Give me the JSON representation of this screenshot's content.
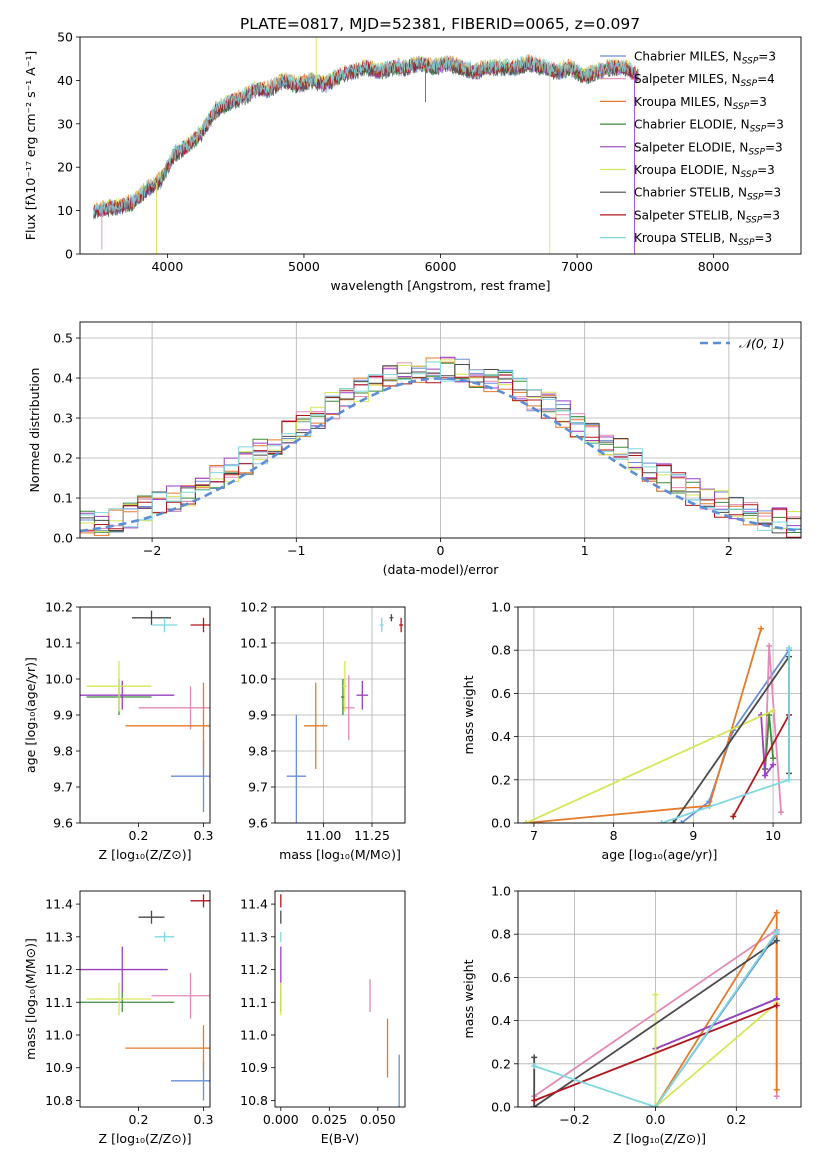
{
  "figure": {
    "title": "PLATE=0817, MJD=52381, FIBERID=0065, z=0.097"
  },
  "series_legend": [
    {
      "name": "Chabrier MILES",
      "nssp": "3",
      "color": "#6a8ed8"
    },
    {
      "name": "Salpeter MILES",
      "nssp": "4",
      "color": "#e58ab6"
    },
    {
      "name": "Kroupa MILES",
      "nssp": "3",
      "color": "#e67a2a"
    },
    {
      "name": "Chabrier ELODIE",
      "nssp": "3",
      "color": "#3f8a3f"
    },
    {
      "name": "Salpeter ELODIE",
      "nssp": "3",
      "color": "#9b3fc4"
    },
    {
      "name": "Kroupa ELODIE",
      "nssp": "3",
      "color": "#d6e65a"
    },
    {
      "name": "Chabrier STELIB",
      "nssp": "3",
      "color": "#4a4a4a"
    },
    {
      "name": "Salpeter STELIB",
      "nssp": "3",
      "color": "#b0161e"
    },
    {
      "name": "Kroupa STELIB",
      "nssp": "3",
      "color": "#7fd8e0"
    }
  ],
  "chart_data": [
    {
      "id": "spectrum",
      "type": "line",
      "xlabel": "wavelength [Angstrom, rest frame]",
      "ylabel": "Flux [fλ10⁻¹⁷ erg cm⁻² s⁻¹ A⁻¹]",
      "xlim": [
        3360,
        8640
      ],
      "ylim": [
        0,
        50
      ],
      "xticks": [
        4000,
        5000,
        6000,
        7000,
        8000
      ],
      "yticks": [
        0,
        10,
        20,
        30,
        40,
        50
      ],
      "grid": false,
      "legend_position": "upper right",
      "x": [
        3460,
        3550,
        3650,
        3750,
        3850,
        3950,
        4050,
        4150,
        4250,
        4350,
        4450,
        4550,
        4650,
        4750,
        4850,
        4950,
        5050,
        5150,
        5250,
        5350,
        5450,
        5550,
        5650,
        5750,
        5850,
        5950,
        6050,
        6150,
        6250,
        6350,
        6450,
        6550,
        6650,
        6750,
        6850,
        6950,
        7050,
        7150,
        7250,
        7350,
        7450
      ],
      "y": [
        10,
        10.5,
        11,
        12,
        15,
        17,
        23,
        25,
        28,
        33,
        35,
        36,
        38,
        38,
        40,
        39,
        40,
        39,
        41,
        42,
        43,
        42,
        43,
        43,
        44,
        43,
        44,
        43,
        42,
        43,
        43,
        43,
        44,
        43,
        42,
        43,
        41,
        42,
        43,
        43,
        41
      ],
      "features": [
        {
          "x": 3520,
          "y": 1
        },
        {
          "x": 3920,
          "y": 0
        },
        {
          "x": 5090,
          "y": 50
        },
        {
          "x": 5890,
          "y": 35
        },
        {
          "x": 6800,
          "y": 0
        },
        {
          "x": 7420,
          "y": 0
        }
      ]
    },
    {
      "id": "residuals",
      "type": "bar",
      "xlabel": "(data-model)/error",
      "ylabel": "Normed distribution",
      "xlim": [
        -2.5,
        2.5
      ],
      "ylim": [
        0,
        0.54
      ],
      "xticks": [
        -2,
        -1,
        0,
        1,
        2
      ],
      "yticks": [
        0.0,
        0.1,
        0.2,
        0.3,
        0.4,
        0.5
      ],
      "grid": true,
      "legend": "𝒩(0, 1)",
      "legend_position": "upper right",
      "bin_width": 0.1
    },
    {
      "id": "age-vs-Z",
      "type": "scatter",
      "xlabel": "Z [log₁₀(Z/Z⊙)]",
      "ylabel": "age  [log₁₀(age/yr)]",
      "xlim": [
        0.11,
        0.31
      ],
      "ylim": [
        9.6,
        10.2
      ],
      "xticks": [
        0.2,
        0.3
      ],
      "yticks": [
        9.6,
        9.7,
        9.8,
        9.9,
        10.0,
        10.1,
        10.2
      ],
      "grid": false,
      "points": [
        {
          "x": 0.3,
          "y": 9.73,
          "xerr": 0.05,
          "yerr": 0.1,
          "series": 0
        },
        {
          "x": 0.28,
          "y": 9.92,
          "xerr": 0.08,
          "yerr": 0.06,
          "series": 1
        },
        {
          "x": 0.3,
          "y": 9.87,
          "xerr": 0.12,
          "yerr": 0.12,
          "series": 2
        },
        {
          "x": 0.17,
          "y": 9.95,
          "xerr": 0.05,
          "yerr": 0.05,
          "series": 3
        },
        {
          "x": 0.175,
          "y": 9.955,
          "xerr": 0.08,
          "yerr": 0.04,
          "series": 4
        },
        {
          "x": 0.17,
          "y": 9.98,
          "xerr": 0.05,
          "yerr": 0.07,
          "series": 5
        },
        {
          "x": 0.22,
          "y": 10.17,
          "xerr": 0.03,
          "yerr": 0.02,
          "series": 6
        },
        {
          "x": 0.3,
          "y": 10.15,
          "xerr": 0.02,
          "yerr": 0.02,
          "series": 7
        },
        {
          "x": 0.24,
          "y": 10.15,
          "xerr": 0.02,
          "yerr": 0.02,
          "series": 8
        }
      ]
    },
    {
      "id": "age-vs-mass",
      "type": "scatter",
      "xlabel": "mass [log₁₀(M/M⊙)]",
      "ylabel": "",
      "xlim": [
        10.75,
        11.42
      ],
      "ylim": [
        9.6,
        10.2
      ],
      "xticks": [
        11.0,
        11.25
      ],
      "yticks": [
        9.6,
        9.7,
        9.8,
        9.9,
        10.0,
        10.1,
        10.2
      ],
      "grid": true,
      "points": [
        {
          "x": 10.86,
          "y": 9.73,
          "xerr": 0.05,
          "yerr": 0.17,
          "series": 0
        },
        {
          "x": 11.13,
          "y": 9.92,
          "xerr": 0.03,
          "yerr": 0.09,
          "series": 1
        },
        {
          "x": 10.96,
          "y": 9.87,
          "xerr": 0.06,
          "yerr": 0.12,
          "series": 2
        },
        {
          "x": 11.1,
          "y": 9.95,
          "xerr": 0.01,
          "yerr": 0.05,
          "series": 3
        },
        {
          "x": 11.2,
          "y": 9.955,
          "xerr": 0.03,
          "yerr": 0.04,
          "series": 4
        },
        {
          "x": 11.11,
          "y": 9.98,
          "xerr": 0.01,
          "yerr": 0.07,
          "series": 5
        },
        {
          "x": 11.35,
          "y": 10.17,
          "xerr": 0.01,
          "yerr": 0.01,
          "series": 6
        },
        {
          "x": 11.4,
          "y": 10.15,
          "xerr": 0.01,
          "yerr": 0.02,
          "series": 7
        },
        {
          "x": 11.3,
          "y": 10.15,
          "xerr": 0.01,
          "yerr": 0.02,
          "series": 8
        }
      ]
    },
    {
      "id": "mass-weight-vs-age",
      "type": "line",
      "xlabel": "age  [log₁₀(age/yr)]",
      "ylabel": "mass weight",
      "xlim": [
        6.8,
        10.35
      ],
      "ylim": [
        0,
        1
      ],
      "xticks": [
        7,
        8,
        9,
        10
      ],
      "yticks": [
        0.0,
        0.2,
        0.4,
        0.6,
        0.8,
        1.0
      ],
      "grid": true,
      "series": [
        {
          "series": 0,
          "x": [
            8.85,
            9.2,
            9.5,
            10.2
          ],
          "y": [
            0.0,
            0.1,
            0.43,
            0.8
          ]
        },
        {
          "series": 1,
          "x": [
            9.9,
            9.95,
            10.1
          ],
          "y": [
            0.25,
            0.82,
            0.05
          ]
        },
        {
          "series": 2,
          "x": [
            6.9,
            9.2,
            9.85
          ],
          "y": [
            0.0,
            0.08,
            0.9
          ]
        },
        {
          "series": 3,
          "x": [
            9.9,
            9.95,
            10.0
          ],
          "y": [
            0.25,
            0.5,
            0.3
          ]
        },
        {
          "series": 4,
          "x": [
            9.85,
            9.9,
            10.0
          ],
          "y": [
            0.5,
            0.22,
            0.27
          ]
        },
        {
          "series": 5,
          "x": [
            6.9,
            10.0
          ],
          "y": [
            0.0,
            0.52
          ]
        },
        {
          "series": 6,
          "x": [
            8.75,
            10.2,
            10.2
          ],
          "y": [
            0.0,
            0.77,
            0.23
          ]
        },
        {
          "series": 7,
          "x": [
            9.5,
            10.2
          ],
          "y": [
            0.03,
            0.5
          ]
        },
        {
          "series": 8,
          "x": [
            8.6,
            10.2,
            10.2
          ],
          "y": [
            0.0,
            0.2,
            0.81
          ]
        }
      ]
    },
    {
      "id": "mass-vs-Z",
      "type": "scatter",
      "xlabel": "Z [log₁₀(Z/Z⊙)]",
      "ylabel": "mass [log₁₀(M/M⊙)]",
      "xlim": [
        0.11,
        0.31
      ],
      "ylim": [
        10.78,
        11.44
      ],
      "xticks": [
        0.2,
        0.3
      ],
      "yticks": [
        10.8,
        10.9,
        11.0,
        11.1,
        11.2,
        11.3,
        11.4
      ],
      "grid": false,
      "points": [
        {
          "x": 0.3,
          "y": 10.86,
          "xerr": 0.05,
          "yerr": 0.06,
          "series": 0
        },
        {
          "x": 0.28,
          "y": 11.12,
          "xerr": 0.06,
          "yerr": 0.07,
          "series": 1
        },
        {
          "x": 0.3,
          "y": 10.96,
          "xerr": 0.12,
          "yerr": 0.07,
          "series": 2
        },
        {
          "x": 0.175,
          "y": 11.1,
          "xerr": 0.08,
          "yerr": 0.03,
          "series": 3
        },
        {
          "x": 0.175,
          "y": 11.2,
          "xerr": 0.07,
          "yerr": 0.07,
          "series": 4
        },
        {
          "x": 0.17,
          "y": 11.11,
          "xerr": 0.05,
          "yerr": 0.05,
          "series": 5
        },
        {
          "x": 0.22,
          "y": 11.36,
          "xerr": 0.02,
          "yerr": 0.02,
          "series": 6
        },
        {
          "x": 0.3,
          "y": 11.41,
          "xerr": 0.02,
          "yerr": 0.02,
          "series": 7
        },
        {
          "x": 0.24,
          "y": 11.3,
          "xerr": 0.015,
          "yerr": 0.015,
          "series": 8
        }
      ]
    },
    {
      "id": "mass-vs-ebv",
      "type": "scatter",
      "xlabel": "E(B-V)",
      "ylabel": "",
      "xlim": [
        -0.003,
        0.064
      ],
      "ylim": [
        10.78,
        11.44
      ],
      "xticks": [
        0.0,
        0.025,
        0.05
      ],
      "yticks": [
        10.8,
        10.9,
        11.0,
        11.1,
        11.2,
        11.3,
        11.4
      ],
      "grid": false,
      "points": [
        {
          "x": 0.061,
          "y": 10.86,
          "yerr": 0.08,
          "series": 0
        },
        {
          "x": 0.046,
          "y": 11.12,
          "yerr": 0.05,
          "series": 1
        },
        {
          "x": 0.055,
          "y": 10.96,
          "yerr": 0.09,
          "series": 2
        },
        {
          "x": 0.0,
          "y": 11.1,
          "yerr": 0.03,
          "series": 3
        },
        {
          "x": 0.0,
          "y": 11.2,
          "yerr": 0.07,
          "series": 4
        },
        {
          "x": 0.0,
          "y": 11.11,
          "yerr": 0.05,
          "series": 5
        },
        {
          "x": 0.0,
          "y": 11.36,
          "yerr": 0.02,
          "series": 6
        },
        {
          "x": 0.0,
          "y": 11.41,
          "yerr": 0.02,
          "series": 7
        },
        {
          "x": 0.0,
          "y": 11.3,
          "yerr": 0.015,
          "series": 8
        }
      ]
    },
    {
      "id": "mass-weight-vs-Z",
      "type": "line",
      "xlabel": "Z [log₁₀(Z/Z⊙)]",
      "ylabel": "mass weight",
      "xlim": [
        -0.34,
        0.36
      ],
      "ylim": [
        0,
        1
      ],
      "xticks": [
        -0.2,
        0.0,
        0.2
      ],
      "yticks": [
        0.0,
        0.2,
        0.4,
        0.6,
        0.8,
        1.0
      ],
      "grid": true,
      "series": [
        {
          "series": 0,
          "x": [
            0.0,
            0.3,
            0.3
          ],
          "y": [
            0.0,
            0.8,
            0.5
          ]
        },
        {
          "series": 1,
          "x": [
            -0.3,
            0.3,
            0.3
          ],
          "y": [
            0.05,
            0.82,
            0.05
          ]
        },
        {
          "series": 2,
          "x": [
            0.0,
            0.3,
            0.3
          ],
          "y": [
            0.0,
            0.9,
            0.08
          ]
        },
        {
          "series": 3,
          "x": [
            0.0,
            0.3
          ],
          "y": [
            0.27,
            0.5
          ]
        },
        {
          "series": 4,
          "x": [
            0.0,
            0.3
          ],
          "y": [
            0.27,
            0.5
          ]
        },
        {
          "series": 5,
          "x": [
            0.0,
            0.0,
            0.3
          ],
          "y": [
            0.52,
            0.0,
            0.48
          ]
        },
        {
          "series": 6,
          "x": [
            -0.3,
            -0.3,
            0.3
          ],
          "y": [
            0.23,
            0.0,
            0.77
          ]
        },
        {
          "series": 7,
          "x": [
            -0.3,
            0.3
          ],
          "y": [
            0.03,
            0.47
          ]
        },
        {
          "series": 8,
          "x": [
            -0.3,
            0.0,
            0.3
          ],
          "y": [
            0.19,
            0.0,
            0.81
          ]
        }
      ]
    }
  ]
}
